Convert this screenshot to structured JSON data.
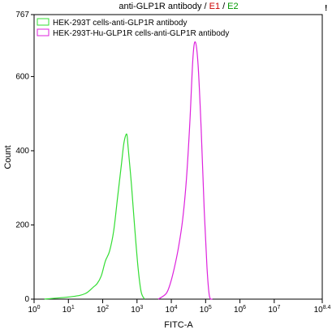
{
  "chart_data": {
    "type": "line",
    "title": [
      {
        "text": "anti-GLP1R antibody /",
        "color": "#000000"
      },
      {
        "text": "E1",
        "color": "#cc0000"
      },
      {
        "text": "/",
        "color": "#000000"
      },
      {
        "text": "E2",
        "color": "#009900"
      }
    ],
    "corner_mark": "!",
    "xlabel": "FITC-A",
    "ylabel": "Count",
    "xscale": "log",
    "xlim": [
      1,
      251188643
    ],
    "ylim": [
      0,
      767
    ],
    "xticks": [
      {
        "value": 1,
        "label": "10",
        "exponent": "0"
      },
      {
        "value": 10,
        "label": "10",
        "exponent": "1"
      },
      {
        "value": 100,
        "label": "10",
        "exponent": "2"
      },
      {
        "value": 1000,
        "label": "10",
        "exponent": "3"
      },
      {
        "value": 10000,
        "label": "10",
        "exponent": "4"
      },
      {
        "value": 100000,
        "label": "10",
        "exponent": "5"
      },
      {
        "value": 1000000,
        "label": "10",
        "exponent": "6"
      },
      {
        "value": 10000000,
        "label": "10",
        "exponent": "7"
      },
      {
        "value": 251188643,
        "label": "10",
        "exponent": "8.4"
      }
    ],
    "yticks": [
      0,
      200,
      400,
      600,
      767
    ],
    "legend": "upper left",
    "series": [
      {
        "name": "HEK-293T cells-anti-GLP1R antibody",
        "color": "#33dd33",
        "x": [
          2,
          13,
          31,
          54,
          69,
          91,
          120,
          158,
          209,
          269,
          355,
          417,
          501,
          550,
          692,
          851,
          1072,
          1318,
          1660
        ],
        "values": [
          0,
          7,
          15,
          33,
          42,
          63,
          103,
          129,
          184,
          271,
          367,
          422,
          445,
          410,
          306,
          196,
          85,
          20,
          0
        ]
      },
      {
        "name": "HEK-293T-Hu-GLP1R cells-anti-GLP1R antibody",
        "color": "#dd22dd",
        "x": [
          4169,
          7079,
          9333,
          12303,
          16218,
          21380,
          27542,
          34674,
          42658,
          50119,
          60256,
          74131,
          91201,
          109648,
          128825,
          158489
        ],
        "values": [
          0,
          15,
          42,
          85,
          140,
          214,
          323,
          476,
          650,
          693,
          632,
          459,
          238,
          85,
          9,
          0
        ]
      }
    ]
  }
}
